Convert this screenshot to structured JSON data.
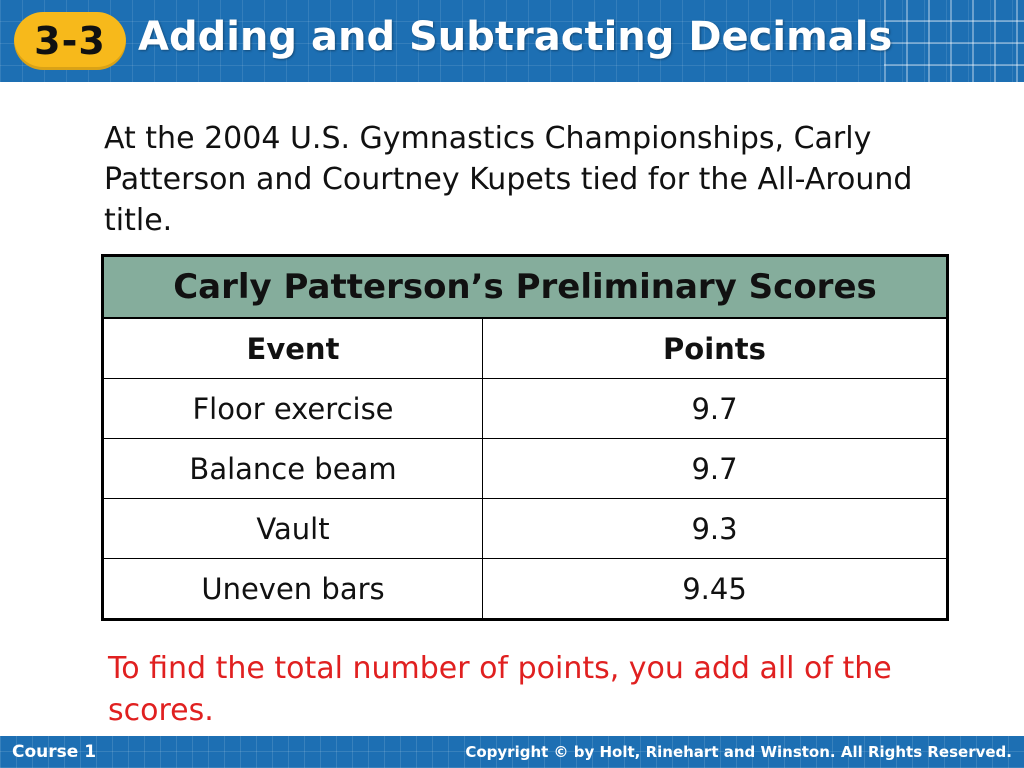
{
  "header": {
    "lesson_number": "3-3",
    "title": "Adding and Subtracting Decimals"
  },
  "intro": "At the 2004 U.S. Gymnastics Championships, Carly Patterson and Courtney Kupets tied for the All-Around title.",
  "table": {
    "caption": "Carly Patterson’s Preliminary Scores",
    "columns": [
      "Event",
      "Points"
    ],
    "rows": [
      [
        "Floor exercise",
        "9.7"
      ],
      [
        "Balance beam",
        "9.7"
      ],
      [
        "Vault",
        "9.3"
      ],
      [
        "Uneven bars",
        "9.45"
      ]
    ]
  },
  "note": "To find the total number of points, you add all of the scores.",
  "footer": {
    "course": "Course 1",
    "copyright": "Copyright © by Holt, Rinehart and Winston. All Rights Reserved."
  },
  "colors": {
    "header_blue": "#1d6fb3",
    "badge_gold": "#f7b91b",
    "table_header_green": "#85ad9c",
    "note_red": "#e02020"
  }
}
